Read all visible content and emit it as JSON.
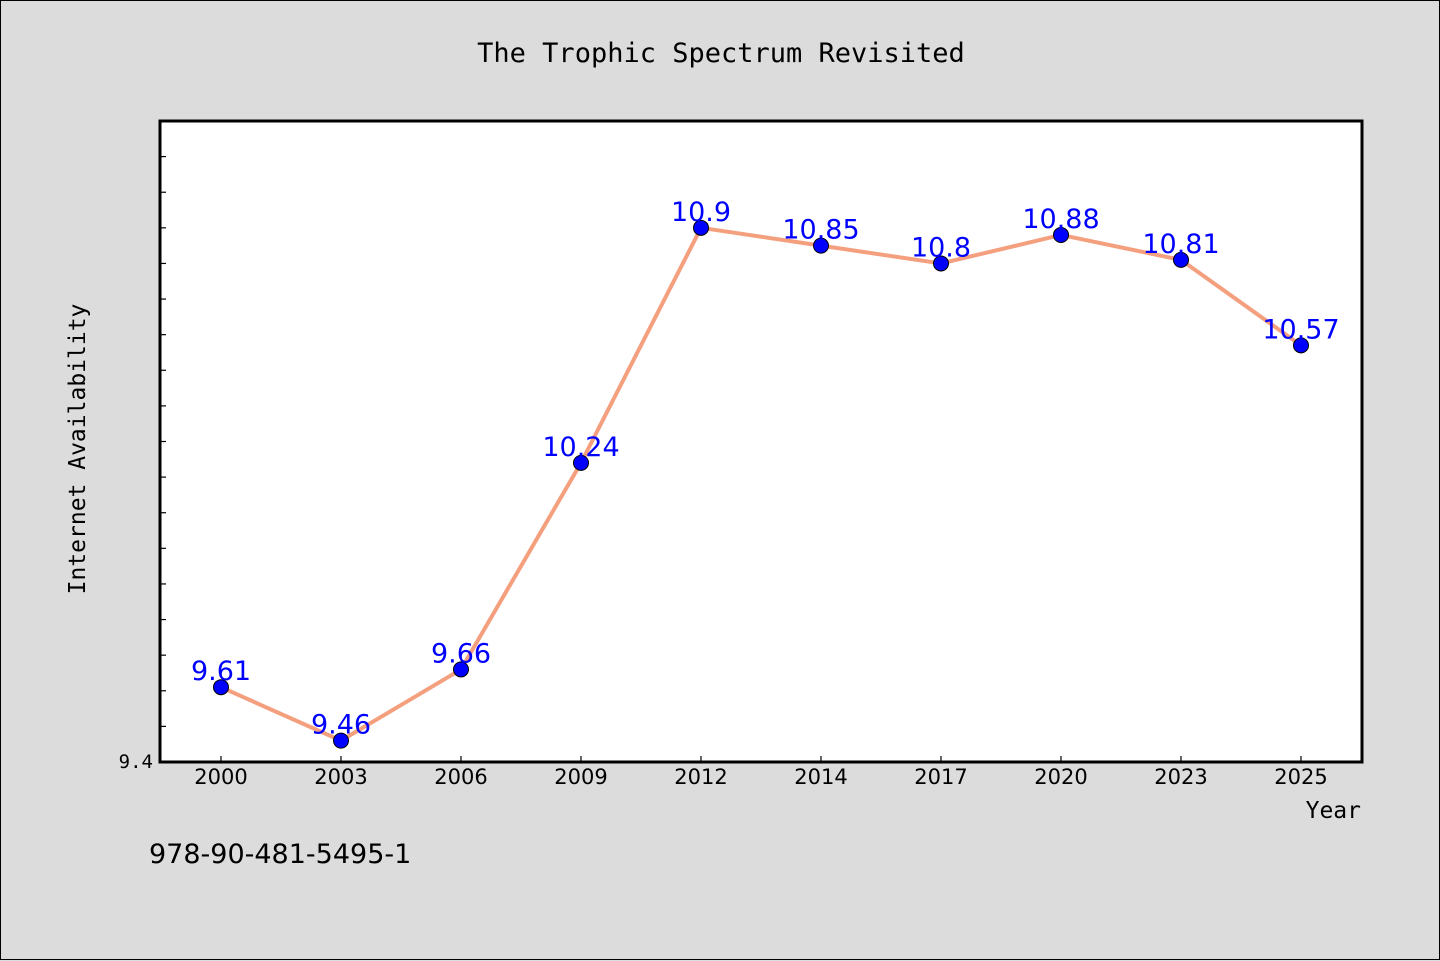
{
  "chart_data": {
    "type": "line",
    "title": "The Trophic Spectrum Revisited",
    "xlabel": "Year",
    "ylabel": "Internet Availability",
    "categories": [
      "2000",
      "2003",
      "2006",
      "2009",
      "2012",
      "2014",
      "2017",
      "2020",
      "2023",
      "2025"
    ],
    "series": [
      {
        "values": [
          9.61,
          9.46,
          9.66,
          10.24,
          10.9,
          10.85,
          10.8,
          10.88,
          10.81,
          10.57
        ],
        "labels": [
          "9.61",
          "9.46",
          "9.66",
          "10.24",
          "10.9",
          "10.85",
          "10.8",
          "10.88",
          "10.81",
          "10.57"
        ],
        "line_color": "#f4a07e",
        "marker_color": "#0000ff",
        "label_color": "#0000ff"
      }
    ],
    "ylim": [
      9.4,
      11.2
    ],
    "y_tick_labels": [
      "9.4"
    ],
    "grid": false,
    "legend": "none"
  },
  "footer": {
    "isbn": "978-90-481-5495-1"
  }
}
